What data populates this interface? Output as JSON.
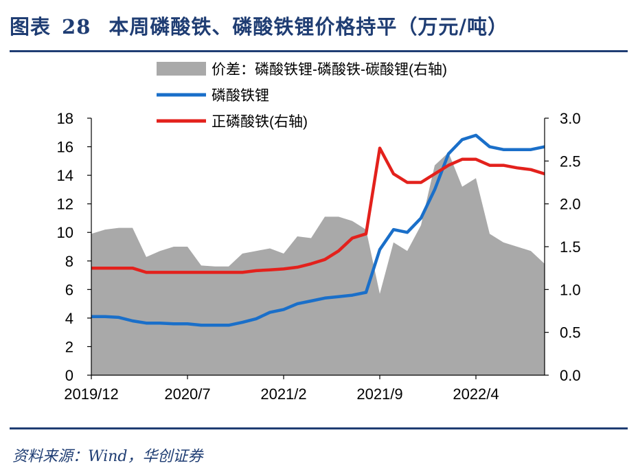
{
  "header": {
    "label": "图表",
    "number": "28",
    "title": "本周磷酸铁、磷酸铁锂价格持平（万元/吨）"
  },
  "source": "资料来源：Wind，华创证券",
  "chart_data": {
    "type": "line",
    "x_ticks": [
      "2019/12",
      "2020/7",
      "2021/2",
      "2021/9",
      "2022/4"
    ],
    "x_range": [
      "2019-12",
      "2022-09"
    ],
    "left_axis": {
      "ticks": [
        "0",
        "2",
        "4",
        "6",
        "8",
        "10",
        "12",
        "14",
        "16",
        "18"
      ],
      "ylim": [
        0,
        18
      ]
    },
    "right_axis": {
      "ticks": [
        "0.0",
        "0.5",
        "1.0",
        "1.5",
        "2.0",
        "2.5",
        "3.0"
      ],
      "ylim": [
        0,
        3.0
      ]
    },
    "legend_position": "top-center",
    "series": [
      {
        "name": "价差：磷酸铁锂-磷酸铁-碳酸锂(右轴)",
        "kind": "area",
        "axis": "right",
        "color": "#a9a9a9",
        "x": [
          "2019-12",
          "2020-01",
          "2020-02",
          "2020-03",
          "2020-04",
          "2020-05",
          "2020-06",
          "2020-07",
          "2020-08",
          "2020-09",
          "2020-10",
          "2020-11",
          "2020-12",
          "2021-01",
          "2021-02",
          "2021-03",
          "2021-04",
          "2021-05",
          "2021-06",
          "2021-07",
          "2021-08",
          "2021-09",
          "2021-10",
          "2021-11",
          "2021-12",
          "2022-01",
          "2022-02",
          "2022-03",
          "2022-04",
          "2022-05",
          "2022-06",
          "2022-07",
          "2022-08",
          "2022-09"
        ],
        "y": [
          1.65,
          1.7,
          1.72,
          1.72,
          1.38,
          1.45,
          1.5,
          1.5,
          1.28,
          1.27,
          1.27,
          1.42,
          1.45,
          1.48,
          1.42,
          1.62,
          1.6,
          1.85,
          1.85,
          1.8,
          1.7,
          0.95,
          1.55,
          1.45,
          1.75,
          2.45,
          2.6,
          2.2,
          2.3,
          1.65,
          1.55,
          1.5,
          1.45,
          1.3
        ]
      },
      {
        "name": "磷酸铁锂",
        "kind": "line",
        "axis": "left",
        "color": "#1a6fc9",
        "x": [
          "2019-12",
          "2020-01",
          "2020-02",
          "2020-03",
          "2020-04",
          "2020-05",
          "2020-06",
          "2020-07",
          "2020-08",
          "2020-09",
          "2020-10",
          "2020-11",
          "2020-12",
          "2021-01",
          "2021-02",
          "2021-03",
          "2021-04",
          "2021-05",
          "2021-06",
          "2021-07",
          "2021-08",
          "2021-09",
          "2021-10",
          "2021-11",
          "2021-12",
          "2022-01",
          "2022-02",
          "2022-03",
          "2022-04",
          "2022-05",
          "2022-06",
          "2022-07",
          "2022-08",
          "2022-09"
        ],
        "y": [
          4.1,
          4.1,
          4.05,
          3.8,
          3.65,
          3.65,
          3.6,
          3.6,
          3.5,
          3.5,
          3.5,
          3.7,
          3.95,
          4.4,
          4.6,
          5.0,
          5.2,
          5.4,
          5.5,
          5.6,
          5.8,
          8.8,
          10.2,
          10.0,
          11.0,
          13.0,
          15.5,
          16.5,
          16.8,
          16.0,
          15.8,
          15.8,
          15.8,
          16.0
        ]
      },
      {
        "name": "正磷酸铁(右轴)",
        "kind": "line",
        "axis": "right",
        "color": "#e3211c",
        "x": [
          "2019-12",
          "2020-01",
          "2020-02",
          "2020-03",
          "2020-04",
          "2020-05",
          "2020-06",
          "2020-07",
          "2020-08",
          "2020-09",
          "2020-10",
          "2020-11",
          "2020-12",
          "2021-01",
          "2021-02",
          "2021-03",
          "2021-04",
          "2021-05",
          "2021-06",
          "2021-07",
          "2021-08",
          "2021-09",
          "2021-10",
          "2021-11",
          "2021-12",
          "2022-01",
          "2022-02",
          "2022-03",
          "2022-04",
          "2022-05",
          "2022-06",
          "2022-07",
          "2022-08",
          "2022-09"
        ],
        "y": [
          1.25,
          1.25,
          1.25,
          1.25,
          1.2,
          1.2,
          1.2,
          1.2,
          1.2,
          1.2,
          1.2,
          1.2,
          1.22,
          1.23,
          1.24,
          1.26,
          1.3,
          1.35,
          1.45,
          1.6,
          1.65,
          2.65,
          2.35,
          2.25,
          2.25,
          2.35,
          2.45,
          2.52,
          2.52,
          2.45,
          2.45,
          2.42,
          2.4,
          2.35
        ]
      }
    ]
  }
}
